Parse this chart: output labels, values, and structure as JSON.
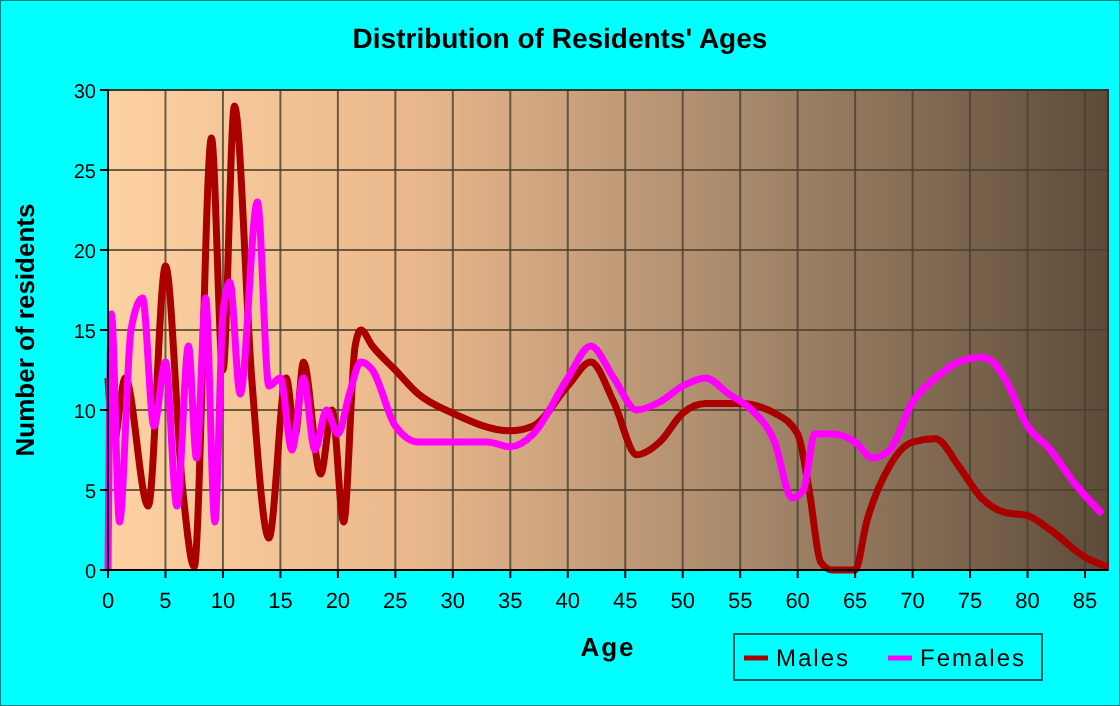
{
  "chart_data": {
    "type": "line",
    "title": "Distribution of Residents' Ages",
    "xlabel": "Age",
    "ylabel": "Number of residents",
    "xlim": [
      0,
      87
    ],
    "xticks": [
      0,
      5,
      10,
      15,
      20,
      25,
      30,
      35,
      40,
      45,
      50,
      55,
      60,
      65,
      70,
      75,
      80,
      85
    ],
    "ylim": [
      0,
      30
    ],
    "yticks": [
      0,
      5,
      10,
      15,
      20,
      25,
      30
    ],
    "grid": true,
    "legend": "bottom right",
    "line_style": "solid",
    "series": [
      {
        "name": "Males",
        "color": "#aa0000",
        "x": [
          0,
          0.5,
          1.5,
          3.5,
          5,
          6.5,
          7.5,
          9,
          10,
          11,
          12.5,
          14,
          15.5,
          16.3,
          17,
          18.5,
          19.5,
          20.5,
          21.5,
          22,
          23,
          25,
          27,
          30,
          35,
          37,
          40,
          42,
          44,
          46,
          48,
          50,
          52,
          55,
          58,
          60,
          61,
          62,
          63,
          65,
          66,
          68,
          70,
          72,
          74,
          76,
          78,
          80,
          82,
          85,
          87
        ],
        "values": [
          12,
          8,
          12,
          4,
          19,
          5,
          0.2,
          27,
          12.5,
          29,
          12,
          2,
          12,
          8.5,
          13,
          6,
          10,
          3,
          14,
          15,
          14,
          12.5,
          11,
          9.8,
          8.7,
          9,
          11.5,
          13,
          10.5,
          7.2,
          8,
          9.8,
          10.4,
          10.4,
          9.8,
          8.5,
          5,
          0.5,
          0,
          0,
          3,
          6.5,
          8,
          8.2,
          6.5,
          4.5,
          3.6,
          3.4,
          2.5,
          0.8,
          0.2
        ]
      },
      {
        "name": "Females",
        "color": "#ff00ff",
        "x": [
          0,
          0.3,
          1,
          2,
          3,
          4,
          5,
          6,
          7,
          7.7,
          8.5,
          9.3,
          10,
          10.6,
          11.5,
          13,
          14,
          15,
          16,
          17,
          18,
          19,
          20,
          21,
          22,
          23,
          25,
          27,
          30,
          33,
          35,
          37,
          40,
          42,
          44,
          46,
          48,
          50,
          52,
          54,
          56,
          58,
          59.5,
          60.5,
          61.5,
          63,
          65,
          66.5,
          68,
          70,
          72,
          74,
          76,
          77,
          78,
          80,
          82,
          84,
          86.5
        ],
        "values": [
          0,
          16,
          3,
          15,
          17,
          9,
          13,
          4,
          14,
          7,
          17,
          3,
          16,
          18,
          11,
          23,
          11.5,
          12,
          7.5,
          12,
          7.5,
          10,
          8.5,
          11,
          13,
          12.5,
          9,
          8,
          8,
          8,
          7.7,
          8.5,
          12,
          14,
          12,
          10,
          10.5,
          11.5,
          12,
          11,
          10,
          8,
          4.5,
          5,
          8.5,
          8.5,
          8,
          7,
          7.5,
          10.5,
          12,
          13,
          13.3,
          13,
          12,
          9,
          7.5,
          5.5,
          3.5
        ]
      }
    ]
  }
}
